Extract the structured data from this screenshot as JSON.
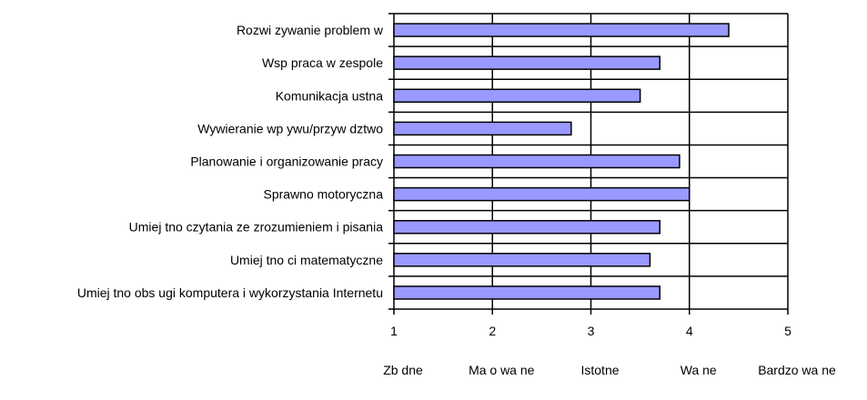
{
  "chart_data": {
    "type": "bar",
    "orientation": "horizontal",
    "categories": [
      "Rozwi  zywanie problem  w",
      "Wsp  praca w zespole",
      "Komunikacja ustna",
      "Wywieranie wp ywu/przyw  dztwo",
      "Planowanie i organizowanie pracy",
      "Sprawno    motoryczna",
      "Umiej  tno    czytania ze zrozumieniem i pisania",
      "Umiej  tno  ci matematyczne",
      "Umiej  tno    obs ugi komputera i wykorzystania Internetu"
    ],
    "values": [
      4.4,
      3.7,
      3.5,
      2.8,
      3.9,
      4.0,
      3.7,
      3.6,
      3.7
    ],
    "xlim": [
      1,
      5
    ],
    "xticks": [
      1,
      2,
      3,
      4,
      5
    ],
    "xtick_labels": [
      "1",
      "2",
      "3",
      "4",
      "5"
    ],
    "scale_labels": [
      "Zb  dne",
      "Ma o wa  ne",
      "Istotne",
      "Wa  ne",
      "Bardzo wa  ne"
    ],
    "title": "",
    "xlabel": "",
    "ylabel": "",
    "grid": true,
    "legend": "none",
    "colors": {
      "bar": "#9999ff",
      "bar_edge": "#000000",
      "grid": "#000000"
    }
  }
}
